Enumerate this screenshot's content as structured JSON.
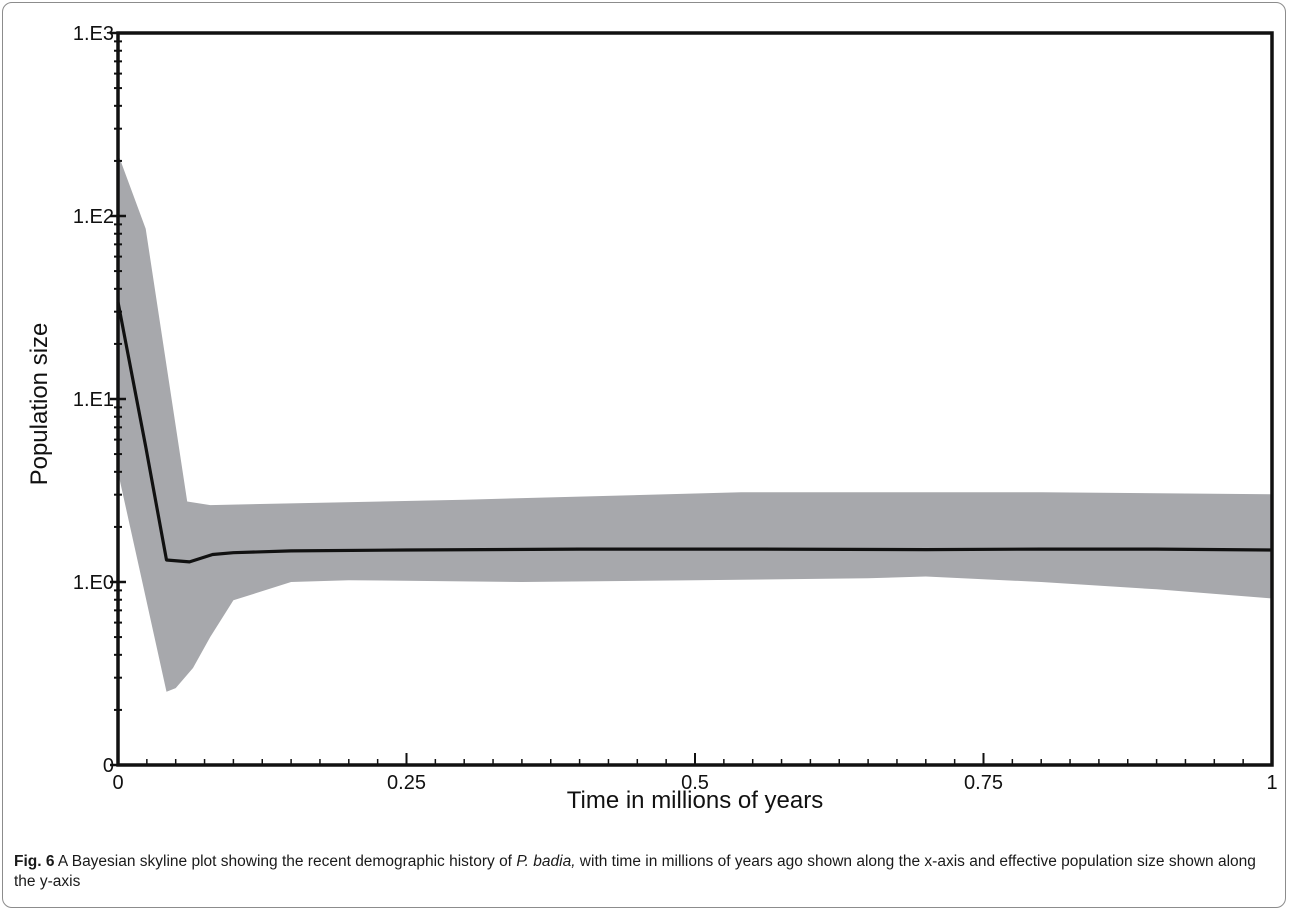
{
  "caption": {
    "label": "Fig. 6",
    "text_before": " A Bayesian skyline plot showing the recent demographic history of ",
    "species": "P. badia,",
    "text_after": " with time in millions of years ago shown along the x-axis and effective population size shown along the y-axis"
  },
  "chart_data": {
    "type": "area",
    "xlabel": "Time in millions of years",
    "ylabel": "Population size",
    "xlim": [
      0,
      1
    ],
    "x_ticks": [
      {
        "value": 0,
        "label": "0"
      },
      {
        "value": 0.25,
        "label": "0.25"
      },
      {
        "value": 0.5,
        "label": "0.5"
      },
      {
        "value": 0.75,
        "label": "0.75"
      },
      {
        "value": 1,
        "label": "1"
      }
    ],
    "y_ticks": [
      {
        "level": 0,
        "label": "0"
      },
      {
        "level": 1,
        "label": "1.E0"
      },
      {
        "level": 2,
        "label": "1.E1"
      },
      {
        "level": 3,
        "label": "1.E2"
      },
      {
        "level": 4,
        "label": "1.E3"
      }
    ],
    "y_scale": "log",
    "series": [
      {
        "kind": "median",
        "color": "#111111",
        "x": [
          0,
          0.024,
          0.042,
          0.062,
          0.082,
          0.1,
          0.15,
          0.25,
          0.4,
          0.55,
          0.7,
          0.8,
          0.9,
          1.0
        ],
        "level": [
          2.53,
          1.74,
          1.12,
          1.11,
          1.15,
          1.16,
          1.17,
          1.175,
          1.18,
          1.18,
          1.177,
          1.18,
          1.18,
          1.175
        ]
      },
      {
        "kind": "hpd-upper",
        "color": "#a7a8ac",
        "x": [
          0,
          0.024,
          0.06,
          0.08,
          0.3,
          0.54,
          0.8,
          1.0
        ],
        "level": [
          3.34,
          2.93,
          1.44,
          1.42,
          1.45,
          1.49,
          1.49,
          1.48
        ]
      },
      {
        "kind": "hpd-lower",
        "color": "#a7a8ac",
        "x": [
          0,
          0.02,
          0.042,
          0.05,
          0.065,
          0.08,
          0.1,
          0.15,
          0.2,
          0.35,
          0.5,
          0.65,
          0.7,
          0.8,
          0.9,
          1.0
        ],
        "level": [
          1.6,
          1.03,
          0.4,
          0.42,
          0.53,
          0.7,
          0.9,
          1.0,
          1.01,
          1.0,
          1.01,
          1.02,
          1.03,
          1.0,
          0.96,
          0.91
        ]
      }
    ]
  }
}
